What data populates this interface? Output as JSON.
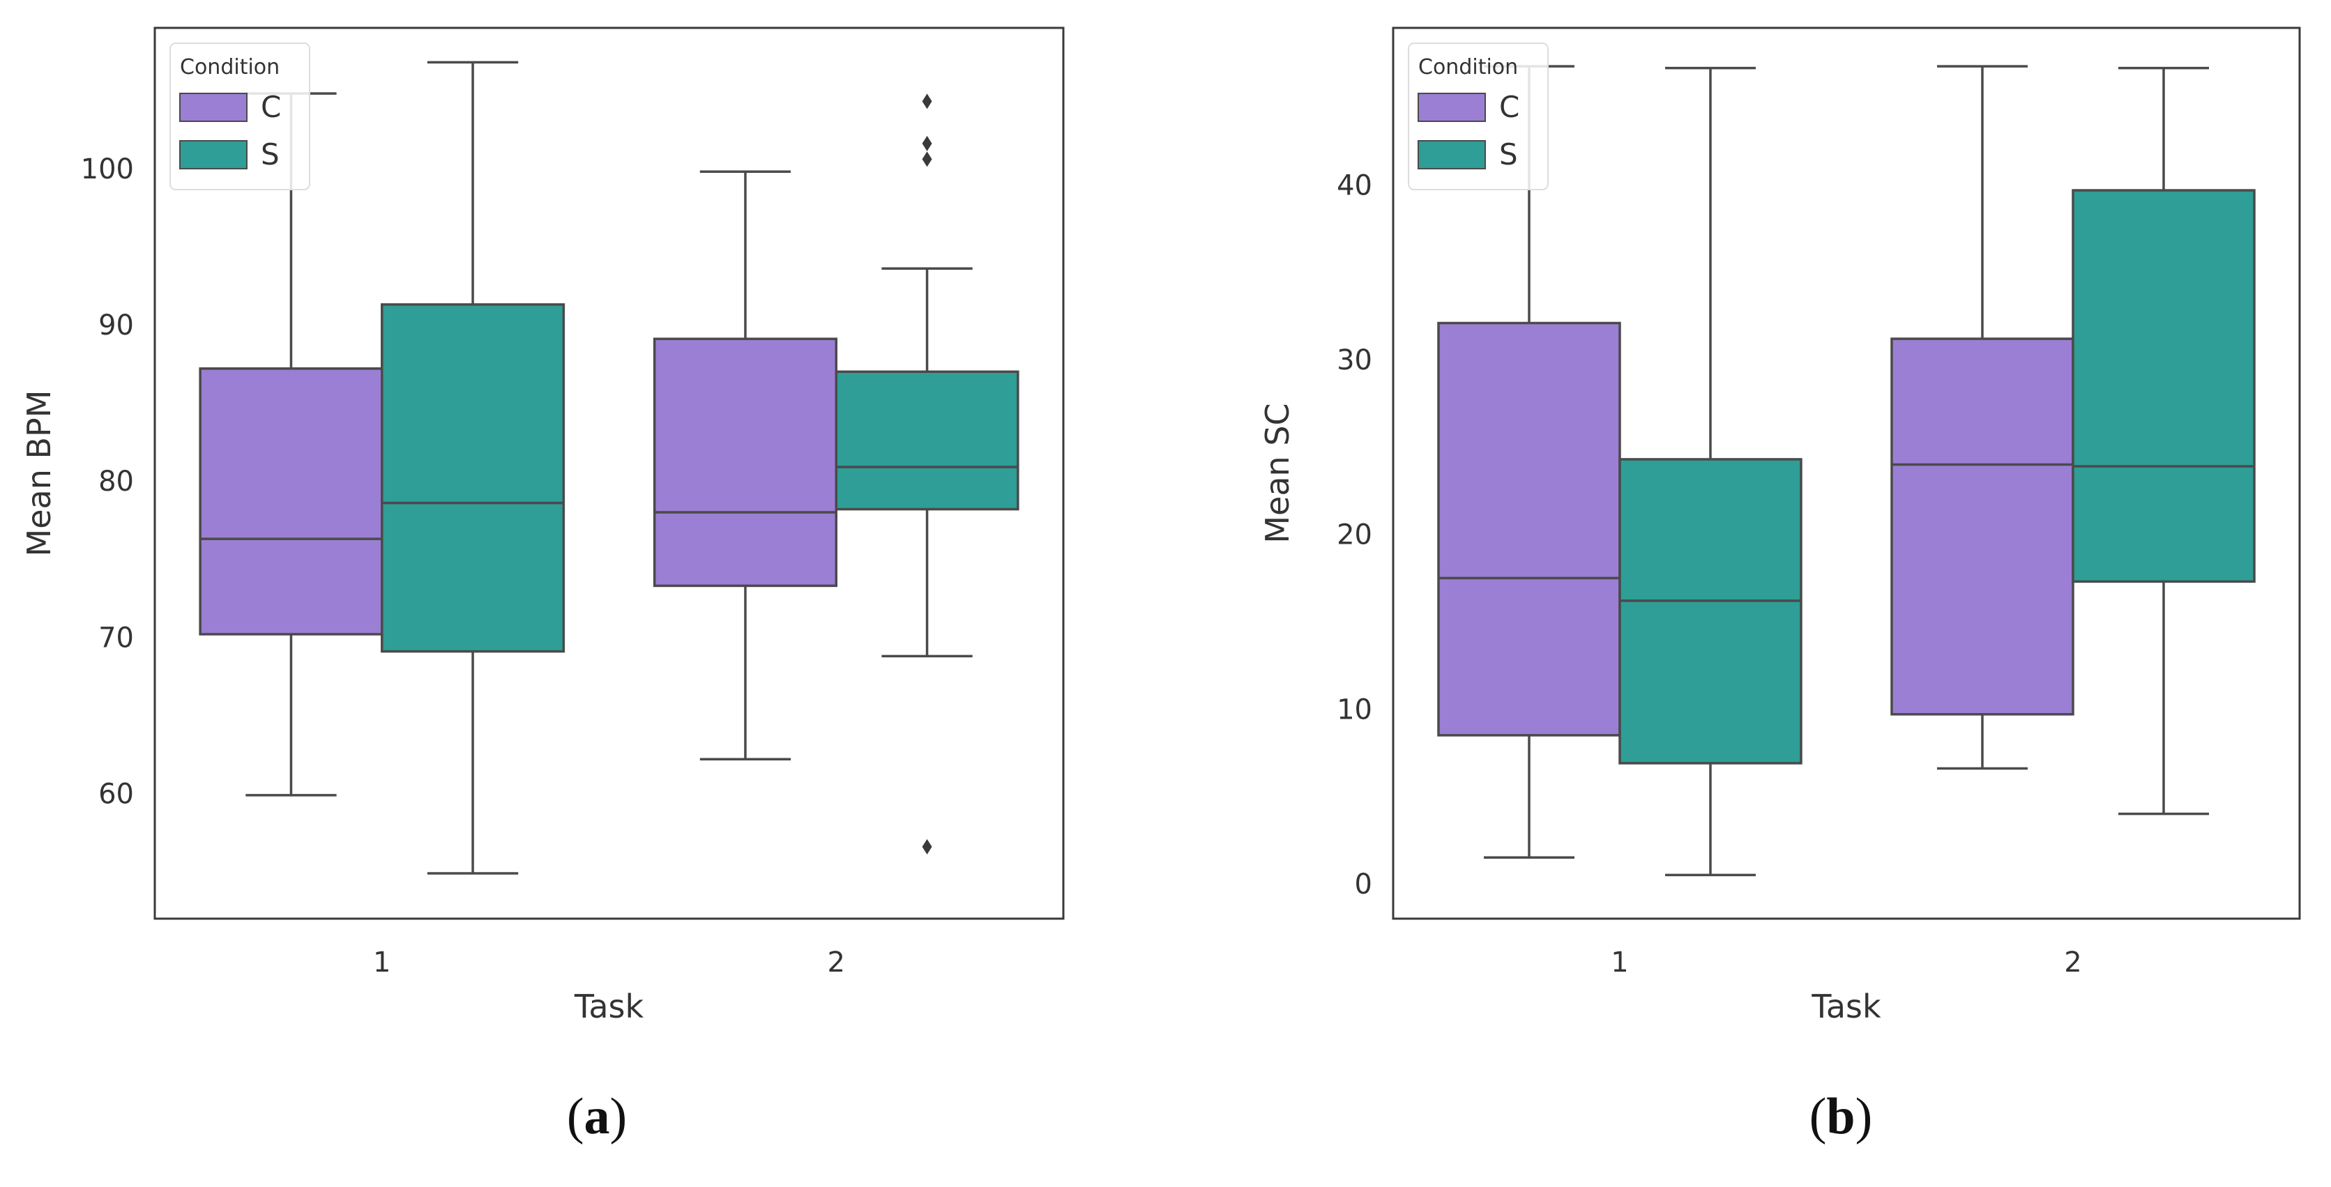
{
  "colors": {
    "C": "#9b7fd4",
    "S": "#2e9e96",
    "frame": "#3a3a3a",
    "whisker": "#4a4a4a"
  },
  "chart_data": [
    {
      "type": "box",
      "panel_label": "a",
      "xlabel": "Task",
      "ylabel": "Mean BPM",
      "ylim": [
        52,
        109
      ],
      "yticks": [
        60,
        70,
        80,
        90,
        100
      ],
      "categories": [
        "1",
        "2"
      ],
      "grid": false,
      "legend": {
        "title": "Condition",
        "position": "top-left",
        "entries": [
          "C",
          "S"
        ]
      },
      "series": [
        {
          "name": "C",
          "boxes": [
            {
              "category": "1",
              "whislo": 59.9,
              "q1": 70.2,
              "median": 76.3,
              "q3": 87.2,
              "whishi": 104.8,
              "fliers": []
            },
            {
              "category": "2",
              "whislo": 62.2,
              "q1": 73.3,
              "median": 78.0,
              "q3": 89.1,
              "whishi": 99.8,
              "fliers": []
            }
          ]
        },
        {
          "name": "S",
          "boxes": [
            {
              "category": "1",
              "whislo": 54.9,
              "q1": 69.1,
              "median": 78.6,
              "q3": 91.3,
              "whishi": 106.8,
              "fliers": []
            },
            {
              "category": "2",
              "whislo": 68.8,
              "q1": 78.2,
              "median": 80.9,
              "q3": 87.0,
              "whishi": 93.6,
              "fliers": [
                56.6,
                100.6,
                101.6,
                104.3
              ]
            }
          ]
        }
      ]
    },
    {
      "type": "box",
      "panel_label": "b",
      "xlabel": "Task",
      "ylabel": "Mean SC",
      "ylim": [
        -2,
        49
      ],
      "yticks": [
        0,
        10,
        20,
        30,
        40
      ],
      "categories": [
        "1",
        "2"
      ],
      "grid": false,
      "legend": {
        "title": "Condition",
        "position": "top-left",
        "entries": [
          "C",
          "S"
        ]
      },
      "series": [
        {
          "name": "C",
          "boxes": [
            {
              "category": "1",
              "whislo": 1.5,
              "q1": 8.5,
              "median": 17.5,
              "q3": 32.1,
              "whishi": 46.8,
              "fliers": []
            },
            {
              "category": "2",
              "whislo": 6.6,
              "q1": 9.7,
              "median": 24.0,
              "q3": 31.2,
              "whishi": 46.8,
              "fliers": []
            }
          ]
        },
        {
          "name": "S",
          "boxes": [
            {
              "category": "1",
              "whislo": 0.5,
              "q1": 6.9,
              "median": 16.2,
              "q3": 24.3,
              "whishi": 46.7,
              "fliers": []
            },
            {
              "category": "2",
              "whislo": 4.0,
              "q1": 17.3,
              "median": 23.9,
              "q3": 39.7,
              "whishi": 46.7,
              "fliers": []
            }
          ]
        }
      ]
    }
  ]
}
